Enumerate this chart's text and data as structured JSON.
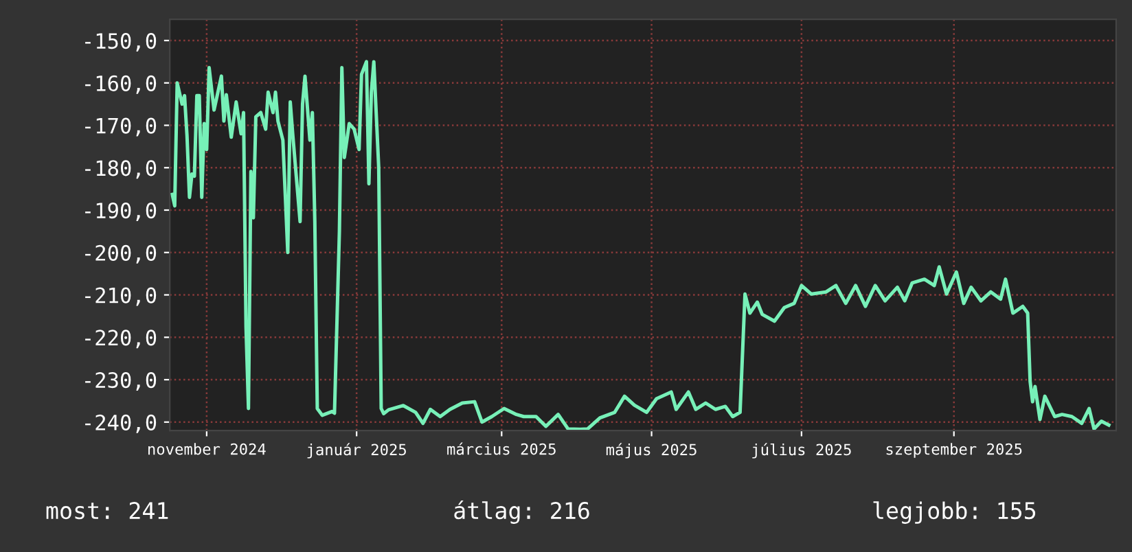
{
  "chart_data": {
    "type": "line",
    "x": [
      "2024-10-18",
      "2024-10-19",
      "2024-10-20",
      "2024-10-22",
      "2024-10-23",
      "2024-10-24",
      "2024-10-25",
      "2024-10-26",
      "2024-10-27",
      "2024-10-28",
      "2024-10-29",
      "2024-10-30",
      "2024-10-31",
      "2024-11-01",
      "2024-11-02",
      "2024-11-04",
      "2024-11-07",
      "2024-11-08",
      "2024-11-09",
      "2024-11-11",
      "2024-11-13",
      "2024-11-15",
      "2024-11-16",
      "2024-11-17",
      "2024-11-18",
      "2024-11-19",
      "2024-11-20",
      "2024-11-21",
      "2024-11-23",
      "2024-11-25",
      "2024-11-26",
      "2024-11-28",
      "2024-11-29",
      "2024-11-30",
      "2024-12-02",
      "2024-12-04",
      "2024-12-05",
      "2024-12-06",
      "2024-12-09",
      "2024-12-10",
      "2024-12-11",
      "2024-12-13",
      "2024-12-14",
      "2024-12-15",
      "2024-12-16",
      "2024-12-18",
      "2024-12-22",
      "2024-12-23",
      "2024-12-25",
      "2024-12-26",
      "2024-12-27",
      "2024-12-29",
      "2024-12-31",
      "2025-01-02",
      "2025-01-03",
      "2025-01-05",
      "2025-01-06",
      "2025-01-07",
      "2025-01-08",
      "2025-01-10",
      "2025-01-11",
      "2025-01-12",
      "2025-01-14",
      "2025-01-20",
      "2025-01-25",
      "2025-01-28",
      "2025-01-31",
      "2025-02-04",
      "2025-02-08",
      "2025-02-13",
      "2025-02-18",
      "2025-02-21",
      "2025-02-25",
      "2025-03-02",
      "2025-03-07",
      "2025-03-10",
      "2025-03-15",
      "2025-03-19",
      "2025-03-24",
      "2025-03-28",
      "2025-04-02",
      "2025-04-05",
      "2025-04-10",
      "2025-04-16",
      "2025-04-20",
      "2025-04-24",
      "2025-04-29",
      "2025-05-03",
      "2025-05-09",
      "2025-05-11",
      "2025-05-16",
      "2025-05-19",
      "2025-05-23",
      "2025-05-27",
      "2025-05-31",
      "2025-06-03",
      "2025-06-06",
      "2025-06-08",
      "2025-06-10",
      "2025-06-13",
      "2025-06-15",
      "2025-06-20",
      "2025-06-24",
      "2025-06-28",
      "2025-07-01",
      "2025-07-05",
      "2025-07-11",
      "2025-07-15",
      "2025-07-19",
      "2025-07-23",
      "2025-07-27",
      "2025-07-31",
      "2025-08-04",
      "2025-08-09",
      "2025-08-12",
      "2025-08-15",
      "2025-08-20",
      "2025-08-24",
      "2025-08-26",
      "2025-08-29",
      "2025-09-02",
      "2025-09-05",
      "2025-09-08",
      "2025-09-12",
      "2025-09-16",
      "2025-09-20",
      "2025-09-22",
      "2025-09-25",
      "2025-09-29",
      "2025-10-01",
      "2025-10-02",
      "2025-10-03",
      "2025-10-04",
      "2025-10-06",
      "2025-10-08",
      "2025-10-12",
      "2025-10-15",
      "2025-10-19",
      "2025-10-23",
      "2025-10-26",
      "2025-10-28",
      "2025-10-31",
      "2025-11-03"
    ],
    "series": [
      {
        "color": "#77f0b8",
        "values": [
          -186.3,
          -189,
          -160,
          -165,
          -163,
          -172.5,
          -187,
          -181.5,
          -182,
          -163,
          -163,
          -187,
          -169.6,
          -175.7,
          -156.4,
          -166.4,
          -158.4,
          -169,
          -162.8,
          -172.8,
          -164.5,
          -172,
          -167,
          -217.5,
          -236.8,
          -180.9,
          -191.8,
          -168,
          -167,
          -170.9,
          -162.2,
          -167,
          -162.2,
          -169,
          -173.5,
          -200,
          -164.5,
          -172,
          -192.7,
          -165,
          -158.4,
          -173.5,
          -167,
          -192.7,
          -236.8,
          -238.4,
          -237.5,
          -237.9,
          -195,
          -156.4,
          -177.6,
          -169.6,
          -170.9,
          -175.7,
          -158,
          -155,
          -183.8,
          -162.2,
          -155,
          -180,
          -236.8,
          -238,
          -237.1,
          -236.1,
          -237.7,
          -240.3,
          -237,
          -238.7,
          -237,
          -235.5,
          -235.2,
          -240,
          -238.7,
          -236.8,
          -238.2,
          -238.7,
          -238.7,
          -241,
          -238.2,
          -241.6,
          -241.7,
          -241.6,
          -239,
          -237.7,
          -233.9,
          -236,
          -237.7,
          -234.5,
          -232.9,
          -237,
          -232.9,
          -237,
          -235.5,
          -237,
          -236.3,
          -238.7,
          -237.7,
          -209.8,
          -214.3,
          -211.7,
          -214.6,
          -216.2,
          -213,
          -212,
          -207.8,
          -209.8,
          -209.3,
          -207.8,
          -212,
          -207.8,
          -212.7,
          -207.8,
          -211.4,
          -208.2,
          -211.4,
          -207.2,
          -206.3,
          -207.8,
          -203.4,
          -209.8,
          -204.6,
          -212,
          -208.2,
          -211.4,
          -209.3,
          -211,
          -206.3,
          -214.3,
          -212.7,
          -214.3,
          -230.4,
          -235.2,
          -231.6,
          -239.4,
          -233.9,
          -238.7,
          -238.2,
          -238.7,
          -240.3,
          -236.8,
          -241.6,
          -239.8,
          -240.7
        ]
      }
    ],
    "xlim": [
      "2024-10-17",
      "2025-11-06"
    ],
    "xticks": [
      {
        "value": "2024-11-01",
        "label": "november 2024"
      },
      {
        "value": "2025-01-01",
        "label": "január 2025"
      },
      {
        "value": "2025-03-01",
        "label": "március 2025"
      },
      {
        "value": "2025-05-01",
        "label": "május 2025"
      },
      {
        "value": "2025-07-01",
        "label": "július 2025"
      },
      {
        "value": "2025-09-01",
        "label": "szeptember 2025"
      }
    ],
    "ylim": [
      -242,
      -145
    ],
    "yticks": [
      {
        "value": -150,
        "label": "-150,0"
      },
      {
        "value": -160,
        "label": "-160,0"
      },
      {
        "value": -170,
        "label": "-170,0"
      },
      {
        "value": -180,
        "label": "-180,0"
      },
      {
        "value": -190,
        "label": "-190,0"
      },
      {
        "value": -200,
        "label": "-200,0"
      },
      {
        "value": -210,
        "label": "-210,0"
      },
      {
        "value": -220,
        "label": "-220,0"
      },
      {
        "value": -230,
        "label": "-230,0"
      },
      {
        "value": -240,
        "label": "-240,0"
      }
    ],
    "grid": true,
    "annotations": [
      "most: 241",
      "átlag: 216",
      "legjobb: 155"
    ]
  }
}
